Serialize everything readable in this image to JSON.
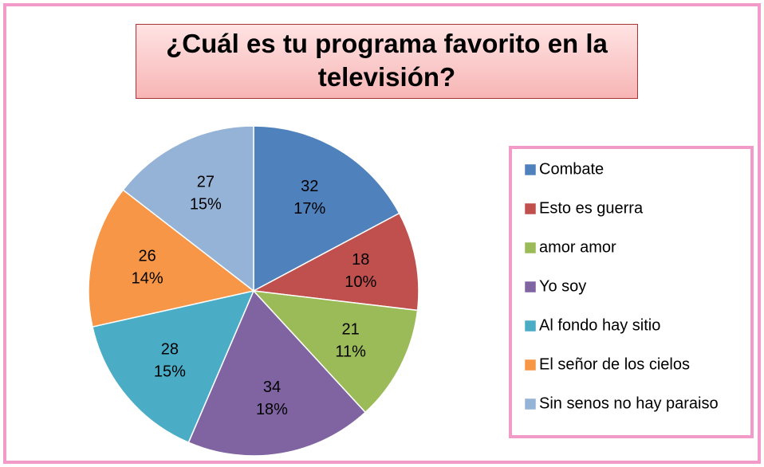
{
  "chart_data": {
    "type": "pie",
    "title": "¿Cuál es tu programa favorito en la televisión?",
    "categories": [
      "Combate",
      "Esto es guerra",
      "amor amor",
      "Yo soy",
      "Al fondo hay sitio",
      "El señor de los cielos",
      "Sin senos no hay paraiso"
    ],
    "values": [
      32,
      18,
      21,
      34,
      28,
      26,
      27
    ],
    "percent_labels": [
      "17%",
      "10%",
      "11%",
      "18%",
      "15%",
      "14%",
      "15%"
    ],
    "colors": [
      "#4f81bd",
      "#c0504d",
      "#9bbb59",
      "#8064a2",
      "#4bacc6",
      "#f79646",
      "#95b3d7"
    ],
    "legend": "right"
  }
}
